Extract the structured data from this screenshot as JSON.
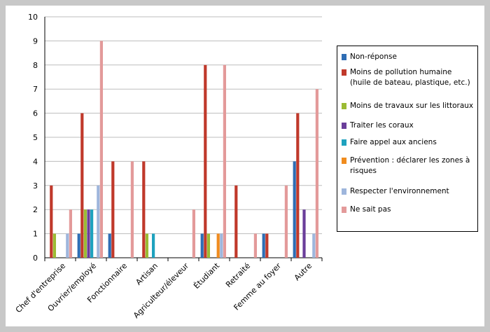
{
  "chart_data": {
    "type": "bar",
    "categories": [
      "Chef d'entreprise",
      "Ouvrier/employé",
      "Fonctionnaire",
      "Artisan",
      "Agriculteur/éleveur",
      "Étudiant",
      "Retraité",
      "Femme au foyer",
      "Autre"
    ],
    "series": [
      {
        "name": "Non-réponse",
        "color": "#2e6db4",
        "values": [
          0,
          1,
          1,
          0,
          0,
          1,
          0,
          1,
          4
        ]
      },
      {
        "name": "Moins de pollution humaine (huile de bateau, plastique, etc.)",
        "color": "#c0392b",
        "values": [
          3,
          6,
          4,
          4,
          0,
          8,
          3,
          1,
          6
        ]
      },
      {
        "name": "Moins de travaux sur les littoraux",
        "color": "#9bbb34",
        "values": [
          1,
          2,
          0,
          1,
          0,
          1,
          0,
          0,
          0
        ]
      },
      {
        "name": "Traiter les coraux",
        "color": "#6a3e9a",
        "values": [
          0,
          2,
          0,
          0,
          0,
          0,
          0,
          0,
          2
        ]
      },
      {
        "name": "Faire appel aux anciens",
        "color": "#1ea2be",
        "values": [
          0,
          2,
          0,
          1,
          0,
          0,
          0,
          0,
          0
        ]
      },
      {
        "name": "Prévention : déclarer les zones à risques",
        "color": "#f08c1e",
        "values": [
          0,
          0,
          0,
          0,
          0,
          1,
          0,
          0,
          0
        ]
      },
      {
        "name": "Respecter l'environnement",
        "color": "#9eb6dc",
        "values": [
          1,
          3,
          0,
          0,
          0,
          1,
          0,
          0,
          1
        ]
      },
      {
        "name": "Ne sait pas",
        "color": "#e39a9a",
        "values": [
          2,
          9,
          4,
          0,
          2,
          8,
          1,
          3,
          7
        ]
      }
    ],
    "y_ticks": [
      "0",
      "1",
      "2",
      "3",
      "4",
      "5",
      "6",
      "7",
      "8",
      "9",
      "10"
    ],
    "ylim": [
      0,
      10
    ],
    "grid": true,
    "legend_position": "right"
  }
}
